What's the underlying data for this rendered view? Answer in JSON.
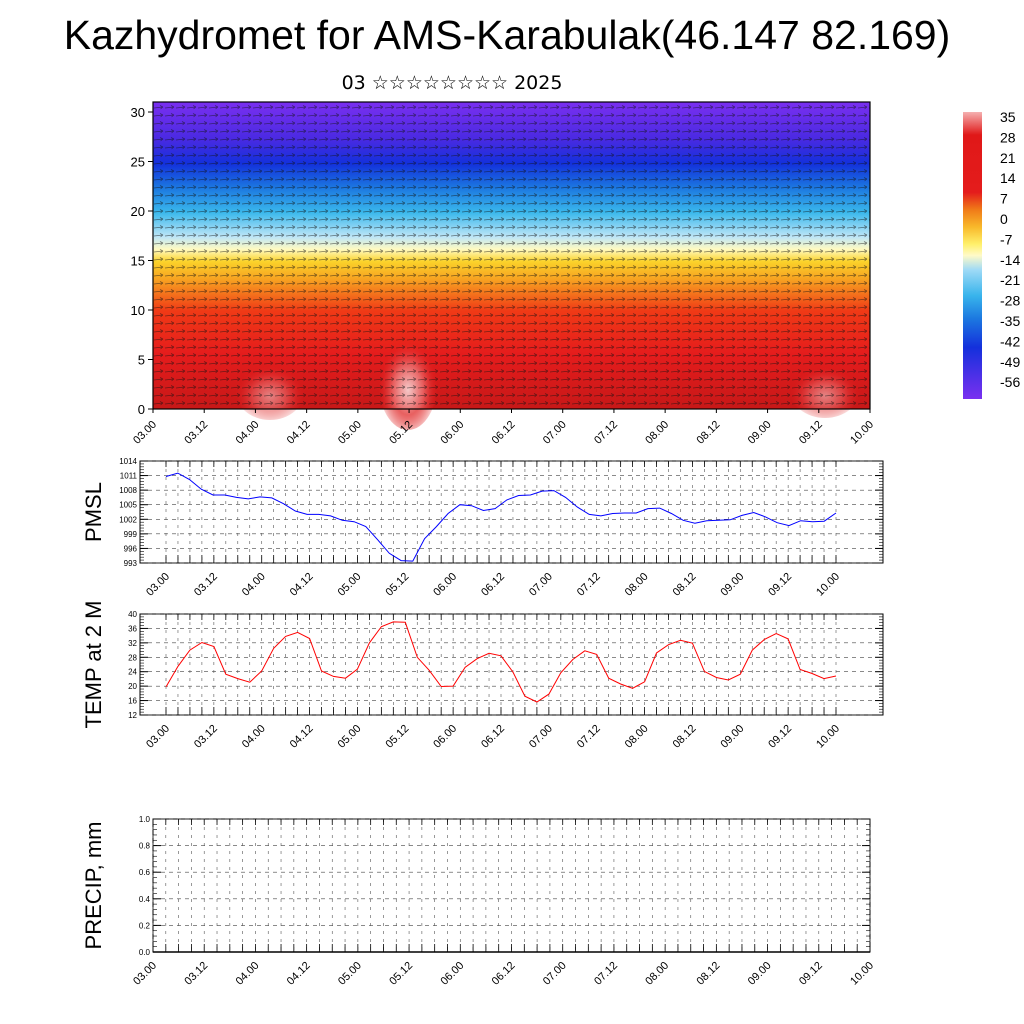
{
  "title": "Kazhydromet for AMS-Karabulak(46.147 82.169)",
  "subtitle": "03 ☆☆☆☆☆☆☆☆ 2025",
  "time_labels": [
    "03.00",
    "03.12",
    "04.00",
    "04.12",
    "05.00",
    "05.12",
    "06.00",
    "06.12",
    "07.00",
    "07.12",
    "08.00",
    "08.12",
    "09.00",
    "09.12",
    "10.00"
  ],
  "colorbar": {
    "labels": [
      "35",
      "28",
      "21",
      "14",
      "7",
      "0",
      "-7",
      "-14",
      "-21",
      "-28",
      "-35",
      "-42",
      "-49",
      "-56"
    ]
  },
  "chart_data": [
    {
      "type": "heatmap",
      "name_hint": "cross-section",
      "ylim": [
        0,
        30
      ],
      "yticks": [
        0,
        5,
        10,
        15,
        20,
        25,
        30
      ],
      "value_range": [
        -56,
        35
      ],
      "note_profile": [
        {
          "level": 0,
          "value": 24
        },
        {
          "level": 5,
          "value": 20
        },
        {
          "level": 10,
          "value": 12
        },
        {
          "level": 13,
          "value": 2
        },
        {
          "level": 15,
          "value": -8
        },
        {
          "level": 18,
          "value": -22
        },
        {
          "level": 20,
          "value": -32
        },
        {
          "level": 23,
          "value": -42
        },
        {
          "level": 26,
          "value": -50
        },
        {
          "level": 30,
          "value": -56
        }
      ]
    },
    {
      "type": "line",
      "ylabel": "PMSL",
      "ylim": [
        993,
        1014
      ],
      "yticks": [
        993,
        996,
        999,
        1002,
        1005,
        1008,
        1011,
        1014
      ],
      "values": [
        1010.8,
        1011.5,
        1010.2,
        1008.2,
        1007.0,
        1007.0,
        1006.5,
        1006.2,
        1006.6,
        1006.4,
        1005.2,
        1003.7,
        1003.0,
        1003.0,
        1002.7,
        1001.8,
        1001.5,
        1000.5,
        997.8,
        995.0,
        993.5,
        993.4,
        998.0,
        1000.5,
        1003.2,
        1005.0,
        1004.8,
        1003.8,
        1004.2,
        1006.0,
        1006.9,
        1007.0,
        1007.8,
        1007.9,
        1006.5,
        1004.5,
        1003.0,
        1002.7,
        1003.2,
        1003.3,
        1003.3,
        1004.2,
        1004.3,
        1003.2,
        1001.8,
        1001.2,
        1001.7,
        1001.8,
        1001.9,
        1002.8,
        1003.4,
        1002.5,
        1001.3,
        1000.7,
        1001.7,
        1001.5,
        1001.6,
        1003.3
      ],
      "color": "#0000ff"
    },
    {
      "type": "line",
      "ylabel": "TEMP at 2 M",
      "ylim": [
        12,
        40
      ],
      "yticks": [
        12,
        16,
        20,
        24,
        28,
        32,
        36,
        40
      ],
      "values": [
        19.8,
        25.5,
        30.0,
        32.1,
        31.0,
        23.3,
        22.1,
        21.1,
        24.2,
        30.5,
        33.8,
        34.9,
        33.2,
        24.2,
        22.7,
        22.2,
        24.7,
        32.0,
        36.5,
        37.8,
        37.7,
        28.0,
        24.4,
        19.9,
        20.0,
        25.2,
        27.6,
        29.1,
        28.4,
        23.9,
        17.2,
        15.6,
        17.8,
        23.7,
        27.4,
        29.8,
        28.8,
        22.2,
        20.6,
        19.4,
        21.2,
        29.2,
        31.5,
        32.7,
        31.9,
        24.1,
        22.4,
        21.7,
        23.3,
        30.0,
        32.9,
        34.6,
        33.1,
        24.6,
        23.5,
        22.1,
        22.8
      ],
      "color": "#ff0000"
    },
    {
      "type": "line",
      "ylabel": "PRECIP, mm",
      "ylim": [
        0.0,
        1.0
      ],
      "yticks": [
        "0.0",
        "0.2",
        "0.4",
        "0.6",
        "0.8",
        "1.0"
      ],
      "values": [],
      "color": "#000000"
    }
  ]
}
